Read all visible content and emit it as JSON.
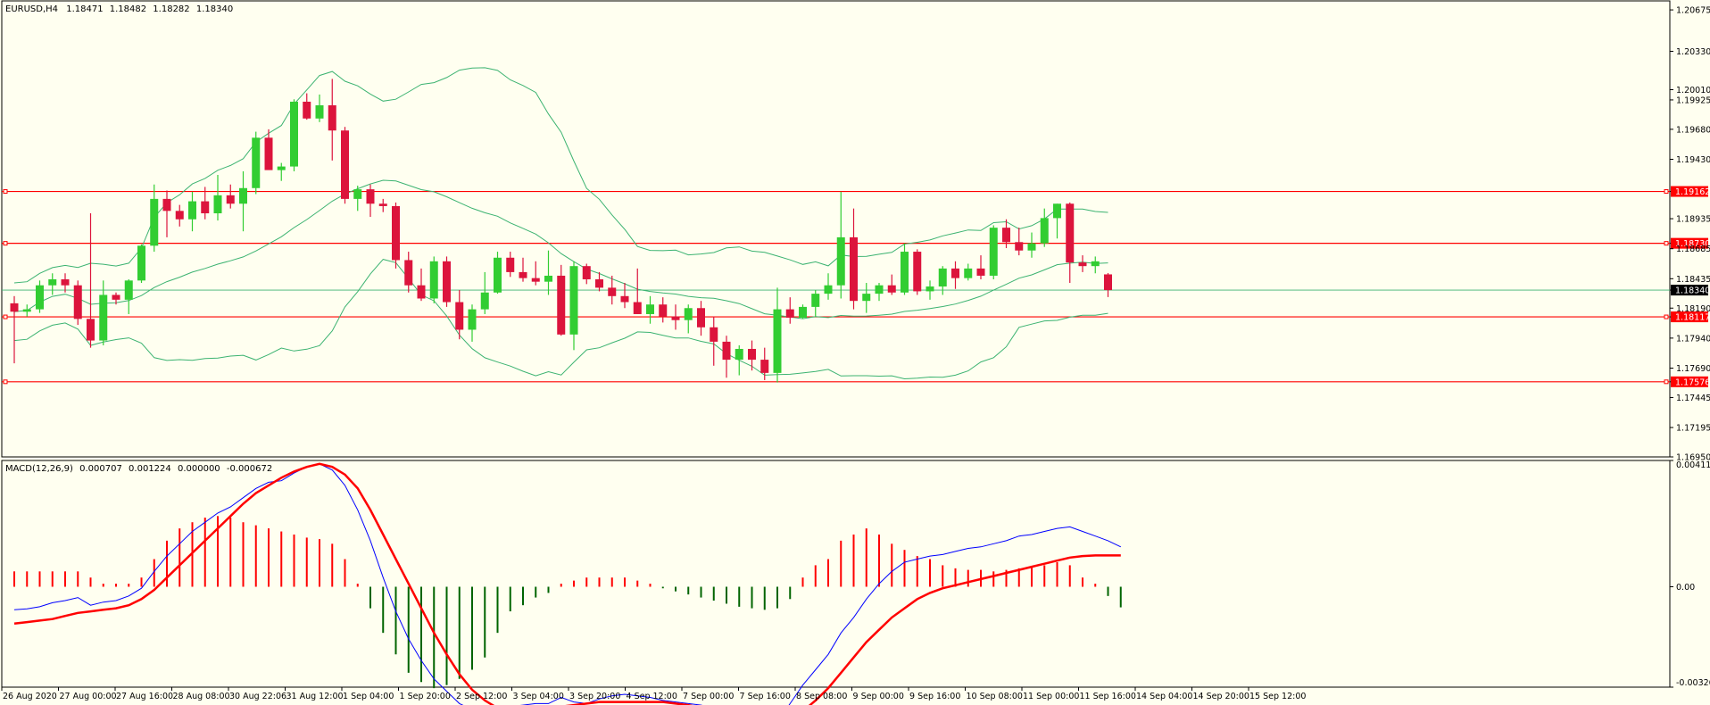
{
  "chart_data": [
    {
      "type": "candlestick",
      "symbol_label": "EURUSD,H4",
      "last_ohlc": [
        "1.18471",
        "1.18482",
        "1.18282",
        "1.18340"
      ],
      "ylim": [
        1.1695,
        1.2075
      ],
      "y_ticks": [
        "1.20675",
        "1.20330",
        "1.20010",
        "1.19925",
        "1.19680",
        "1.19430",
        "1.19162",
        "1.18935",
        "1.18730",
        "1.18685",
        "1.18435",
        "1.18340",
        "1.18190",
        "1.18117",
        "1.17940",
        "1.17690",
        "1.17576",
        "1.17445",
        "1.17195",
        "1.16950"
      ],
      "x_labels": [
        "26 Aug 2020",
        "27 Aug 00:00",
        "27 Aug 16:00",
        "28 Aug 08:00",
        "30 Aug 22:06",
        "31 Aug 12:00",
        "1 Sep 04:00",
        "1 Sep 20:00",
        "2 Sep 12:00",
        "3 Sep 04:00",
        "3 Sep 20:00",
        "4 Sep 12:00",
        "7 Sep 00:00",
        "7 Sep 16:00",
        "8 Sep 08:00",
        "9 Sep 00:00",
        "9 Sep 16:00",
        "10 Sep 08:00",
        "11 Sep 00:00",
        "11 Sep 16:00",
        "14 Sep 04:00",
        "14 Sep 20:00",
        "15 Sep 12:00"
      ],
      "horizontal_levels": [
        {
          "value": 1.19162,
          "label": "1.19162"
        },
        {
          "value": 1.1873,
          "label": "1.18730"
        },
        {
          "value": 1.18117,
          "label": "1.18117"
        },
        {
          "value": 1.17576,
          "label": "1.17576"
        }
      ],
      "current_price": {
        "value": 1.1834,
        "label": "1.18340"
      },
      "colors": {
        "bull": "#32cd32",
        "bear": "#dc143c",
        "bands": "#3cb371",
        "levels": "#ff0000",
        "background": "#fffff0"
      },
      "candles": [
        [
          1.1823,
          1.1829,
          1.1773,
          1.1816
        ],
        [
          1.1816,
          1.1822,
          1.1812,
          1.1818
        ],
        [
          1.1818,
          1.1842,
          1.1815,
          1.1838
        ],
        [
          1.1838,
          1.1848,
          1.183,
          1.1843
        ],
        [
          1.1843,
          1.1848,
          1.1832,
          1.1838
        ],
        [
          1.1838,
          1.1842,
          1.1805,
          1.181
        ],
        [
          1.181,
          1.1898,
          1.1786,
          1.1792
        ],
        [
          1.1792,
          1.1842,
          1.1788,
          1.183
        ],
        [
          1.183,
          1.1832,
          1.1822,
          1.1826
        ],
        [
          1.1826,
          1.1843,
          1.1814,
          1.1842
        ],
        [
          1.1842,
          1.1872,
          1.184,
          1.1871
        ],
        [
          1.1871,
          1.1922,
          1.1866,
          1.191
        ],
        [
          1.191,
          1.1917,
          1.1878,
          1.19
        ],
        [
          1.19,
          1.1905,
          1.1887,
          1.1893
        ],
        [
          1.1893,
          1.1916,
          1.1883,
          1.1908
        ],
        [
          1.1908,
          1.192,
          1.1893,
          1.1898
        ],
        [
          1.1898,
          1.193,
          1.1892,
          1.1913
        ],
        [
          1.1913,
          1.1922,
          1.1902,
          1.1906
        ],
        [
          1.1906,
          1.1933,
          1.1883,
          1.1919
        ],
        [
          1.1919,
          1.1966,
          1.1914,
          1.1961
        ],
        [
          1.1961,
          1.1968,
          1.1935,
          1.1934
        ],
        [
          1.1934,
          1.194,
          1.1925,
          1.1937
        ],
        [
          1.1937,
          1.1993,
          1.1933,
          1.1991
        ],
        [
          1.1991,
          1.1998,
          1.1976,
          1.1977
        ],
        [
          1.1977,
          1.1997,
          1.1974,
          1.1988
        ],
        [
          1.1988,
          1.201,
          1.1942,
          1.1967
        ],
        [
          1.1967,
          1.197,
          1.1906,
          1.191
        ],
        [
          1.191,
          1.1921,
          1.19,
          1.1918
        ],
        [
          1.1918,
          1.1922,
          1.1895,
          1.1906
        ],
        [
          1.1906,
          1.191,
          1.1899,
          1.1904
        ],
        [
          1.1904,
          1.1907,
          1.1852,
          1.1859
        ],
        [
          1.1859,
          1.1866,
          1.1832,
          1.1838
        ],
        [
          1.1838,
          1.1852,
          1.1825,
          1.1827
        ],
        [
          1.1827,
          1.1862,
          1.1823,
          1.1858
        ],
        [
          1.1858,
          1.1862,
          1.182,
          1.1824
        ],
        [
          1.1824,
          1.1834,
          1.1793,
          1.1801
        ],
        [
          1.1801,
          1.1822,
          1.1791,
          1.1818
        ],
        [
          1.1818,
          1.1849,
          1.1814,
          1.1832
        ],
        [
          1.1832,
          1.1866,
          1.1831,
          1.1861
        ],
        [
          1.1861,
          1.1866,
          1.1845,
          1.1849
        ],
        [
          1.1849,
          1.1861,
          1.1841,
          1.1844
        ],
        [
          1.1844,
          1.1858,
          1.1838,
          1.1841
        ],
        [
          1.1841,
          1.1867,
          1.183,
          1.1846
        ],
        [
          1.1846,
          1.1855,
          1.1796,
          1.1797
        ],
        [
          1.1797,
          1.1858,
          1.1784,
          1.1854
        ],
        [
          1.1854,
          1.1856,
          1.1839,
          1.1843
        ],
        [
          1.1843,
          1.1849,
          1.1833,
          1.1836
        ],
        [
          1.1836,
          1.1846,
          1.1822,
          1.1829
        ],
        [
          1.1829,
          1.184,
          1.1819,
          1.1824
        ],
        [
          1.1824,
          1.1852,
          1.1814,
          1.1814
        ],
        [
          1.1814,
          1.1829,
          1.1806,
          1.1822
        ],
        [
          1.1822,
          1.1828,
          1.1807,
          1.1812
        ],
        [
          1.1812,
          1.1822,
          1.1801,
          1.1809
        ],
        [
          1.1809,
          1.1822,
          1.1798,
          1.1819
        ],
        [
          1.1819,
          1.1825,
          1.1796,
          1.1803
        ],
        [
          1.1803,
          1.1812,
          1.1771,
          1.1791
        ],
        [
          1.1791,
          1.1796,
          1.1761,
          1.1776
        ],
        [
          1.1776,
          1.1788,
          1.1763,
          1.1785
        ],
        [
          1.1785,
          1.1792,
          1.1767,
          1.1776
        ],
        [
          1.1776,
          1.1786,
          1.1759,
          1.1765
        ],
        [
          1.1765,
          1.1836,
          1.1757,
          1.1818
        ],
        [
          1.1818,
          1.1828,
          1.1806,
          1.1811
        ],
        [
          1.1811,
          1.1822,
          1.181,
          1.182
        ],
        [
          1.182,
          1.1834,
          1.1812,
          1.1831
        ],
        [
          1.1831,
          1.1848,
          1.1826,
          1.1838
        ],
        [
          1.1838,
          1.1916,
          1.1827,
          1.1878
        ],
        [
          1.1878,
          1.1902,
          1.1818,
          1.1825
        ],
        [
          1.1825,
          1.184,
          1.1815,
          1.1831
        ],
        [
          1.1831,
          1.184,
          1.1825,
          1.1838
        ],
        [
          1.1838,
          1.1847,
          1.183,
          1.1832
        ],
        [
          1.1832,
          1.1873,
          1.183,
          1.1866
        ],
        [
          1.1866,
          1.1868,
          1.183,
          1.1833
        ],
        [
          1.1833,
          1.1842,
          1.1826,
          1.1837
        ],
        [
          1.1837,
          1.1854,
          1.183,
          1.1852
        ],
        [
          1.1852,
          1.1858,
          1.1835,
          1.1844
        ],
        [
          1.1844,
          1.1856,
          1.1842,
          1.1852
        ],
        [
          1.1852,
          1.1863,
          1.1843,
          1.1846
        ],
        [
          1.1846,
          1.1888,
          1.1843,
          1.1886
        ],
        [
          1.1886,
          1.1893,
          1.1869,
          1.1874
        ],
        [
          1.1874,
          1.1886,
          1.1863,
          1.1867
        ],
        [
          1.1867,
          1.1882,
          1.1861,
          1.1873
        ],
        [
          1.1873,
          1.1902,
          1.187,
          1.1894
        ],
        [
          1.1894,
          1.1906,
          1.1877,
          1.1906
        ],
        [
          1.1906,
          1.1907,
          1.184,
          1.1857
        ],
        [
          1.1857,
          1.1863,
          1.1849,
          1.1854
        ],
        [
          1.1854,
          1.1862,
          1.1848,
          1.1858
        ],
        [
          1.18471,
          1.18482,
          1.18282,
          1.1834
        ]
      ]
    },
    {
      "type": "macd",
      "title": "MACD(12,26,9)",
      "values": [
        "0.000707",
        "0.001224",
        "0.000000",
        "-0.000672"
      ],
      "ylim": [
        -0.003267,
        0.00411
      ],
      "y_ticks": [
        "0.00411",
        "0.00",
        "-0.003267"
      ],
      "colors": {
        "hist_pos": "#ff0000",
        "hist_neg": "#006400",
        "fast": "#0000ff",
        "signal": "#ff0000"
      },
      "histogram": [
        0.0005,
        0.0005,
        0.0005,
        0.0005,
        0.0005,
        0.0005,
        0.0003,
        0.0001,
        0.0001,
        0.0001,
        0.0003,
        0.0009,
        0.0015,
        0.0019,
        0.0021,
        0.00225,
        0.0023,
        0.00225,
        0.0021,
        0.002,
        0.0019,
        0.0018,
        0.0017,
        0.0016,
        0.00155,
        0.0014,
        0.0009,
        0.0001,
        -0.0007,
        -0.0015,
        -0.0022,
        -0.0028,
        -0.0031,
        -0.0033,
        -0.0032,
        -0.003,
        -0.0027,
        -0.0023,
        -0.0015,
        -0.0008,
        -0.0006,
        -0.00035,
        -0.0002,
        0.0001,
        0.0002,
        0.0003,
        0.0003,
        0.0003,
        0.0003,
        0.0002,
        0.0001,
        -5e-05,
        -0.00015,
        -0.00025,
        -0.00035,
        -0.00045,
        -0.00055,
        -0.00065,
        -0.0007,
        -0.00075,
        -0.0007,
        -0.0004,
        0.0003,
        0.0007,
        0.0009,
        0.0015,
        0.0017,
        0.0019,
        0.0017,
        0.0014,
        0.0012,
        0.001,
        0.0009,
        0.0007,
        0.0006,
        0.00055,
        0.00055,
        0.0005,
        0.00055,
        0.0006,
        0.00065,
        0.0007,
        0.0008,
        0.0007,
        0.0003,
        0.0001,
        -0.0003,
        -0.00067
      ],
      "fast": [
        -0.00075,
        -0.00072,
        -0.00065,
        -0.00052,
        -0.00045,
        -0.00035,
        -0.0006,
        -0.0005,
        -0.00045,
        -0.0003,
        -5e-05,
        0.0005,
        0.001,
        0.0014,
        0.0018,
        0.0021,
        0.0024,
        0.0026,
        0.0029,
        0.0032,
        0.0034,
        0.00345,
        0.0037,
        0.0039,
        0.004,
        0.0038,
        0.0033,
        0.0025,
        0.0015,
        0.0003,
        -0.0008,
        -0.0017,
        -0.0024,
        -0.003,
        -0.0034,
        -0.0038,
        -0.004,
        -0.0041,
        -0.004,
        -0.0039,
        -0.00385,
        -0.0038,
        -0.0038,
        -0.0036,
        -0.00375,
        -0.0038,
        -0.00365,
        -0.00355,
        -0.0035,
        -0.00355,
        -0.0036,
        -0.0037,
        -0.00375,
        -0.0038,
        -0.00385,
        -0.00395,
        -0.0041,
        -0.00425,
        -0.00445,
        -0.0046,
        -0.0044,
        -0.0038,
        -0.0032,
        -0.0027,
        -0.0022,
        -0.0015,
        -0.001,
        -0.0004,
        0.0001,
        0.0005,
        0.0008,
        0.0009,
        0.001,
        0.00105,
        0.00115,
        0.00125,
        0.0013,
        0.0014,
        0.0015,
        0.00165,
        0.0017,
        0.0018,
        0.0019,
        0.00195,
        0.0018,
        0.00165,
        0.0015,
        0.0013
      ],
      "signal": [
        -0.0012,
        -0.00115,
        -0.0011,
        -0.00105,
        -0.00095,
        -0.00085,
        -0.0008,
        -0.00075,
        -0.0007,
        -0.0006,
        -0.0004,
        -0.0001,
        0.0003,
        0.0007,
        0.0011,
        0.0015,
        0.0019,
        0.0023,
        0.0027,
        0.00305,
        0.0033,
        0.00355,
        0.00375,
        0.0039,
        0.004,
        0.0039,
        0.00365,
        0.0032,
        0.0025,
        0.0017,
        0.0009,
        0.0001,
        -0.0007,
        -0.0015,
        -0.0022,
        -0.00285,
        -0.00335,
        -0.0037,
        -0.00395,
        -0.00405,
        -0.0041,
        -0.0041,
        -0.004,
        -0.0039,
        -0.00385,
        -0.0038,
        -0.00375,
        -0.00375,
        -0.00375,
        -0.00375,
        -0.00375,
        -0.00375,
        -0.0038,
        -0.00385,
        -0.00395,
        -0.00405,
        -0.00415,
        -0.00425,
        -0.0043,
        -0.00435,
        -0.00435,
        -0.00425,
        -0.00405,
        -0.0037,
        -0.0033,
        -0.0028,
        -0.0023,
        -0.0018,
        -0.0014,
        -0.001,
        -0.0007,
        -0.0004,
        -0.0002,
        -5e-05,
        5e-05,
        0.00015,
        0.00025,
        0.00035,
        0.00045,
        0.00055,
        0.00065,
        0.00075,
        0.00085,
        0.00095,
        0.001,
        0.00102,
        0.00102,
        0.00102
      ]
    }
  ]
}
